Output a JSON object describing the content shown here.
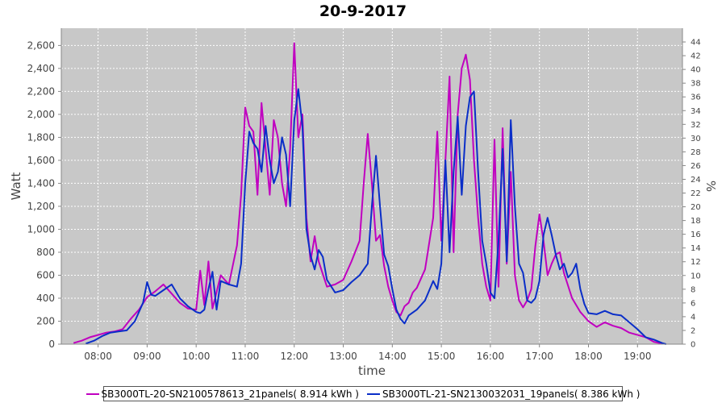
{
  "chart_data": {
    "type": "line",
    "title": "20-9-2017",
    "xlabel": "time",
    "ylabel": "Watt",
    "y2label": "%",
    "ylim": [
      0,
      2750
    ],
    "y2lim": [
      0,
      46
    ],
    "xlim": [
      "07:15",
      "19:55"
    ],
    "x_ticks": [
      "08:00",
      "09:00",
      "10:00",
      "11:00",
      "12:00",
      "13:00",
      "14:00",
      "15:00",
      "16:00",
      "17:00",
      "18:00",
      "19:00"
    ],
    "y_ticks": [
      "0",
      "200",
      "400",
      "600",
      "800",
      "1,000",
      "1,200",
      "1,400",
      "1,600",
      "1,800",
      "2,000",
      "2,200",
      "2,400",
      "2,600"
    ],
    "y2_ticks": [
      "0",
      "2",
      "4",
      "6",
      "8",
      "10",
      "12",
      "14",
      "16",
      "18",
      "20",
      "22",
      "24",
      "26",
      "28",
      "30",
      "32",
      "34",
      "36",
      "38",
      "40",
      "42",
      "44"
    ],
    "grid": true,
    "legend_position": "bottom",
    "series": [
      {
        "name": "SB3000TL-20-SN2100578613_21panels( 8.914 kWh )",
        "color": "#c000c0",
        "points": [
          [
            "07:30",
            10
          ],
          [
            "07:40",
            30
          ],
          [
            "07:50",
            60
          ],
          [
            "08:00",
            80
          ],
          [
            "08:10",
            100
          ],
          [
            "08:20",
            110
          ],
          [
            "08:30",
            130
          ],
          [
            "08:40",
            220
          ],
          [
            "08:50",
            300
          ],
          [
            "09:00",
            410
          ],
          [
            "09:10",
            460
          ],
          [
            "09:20",
            520
          ],
          [
            "09:30",
            440
          ],
          [
            "09:40",
            360
          ],
          [
            "09:50",
            310
          ],
          [
            "10:00",
            300
          ],
          [
            "10:05",
            640
          ],
          [
            "10:10",
            340
          ],
          [
            "10:15",
            720
          ],
          [
            "10:20",
            310
          ],
          [
            "10:30",
            600
          ],
          [
            "10:40",
            520
          ],
          [
            "10:50",
            860
          ],
          [
            "10:55",
            1300
          ],
          [
            "11:00",
            2060
          ],
          [
            "11:05",
            1900
          ],
          [
            "11:10",
            1850
          ],
          [
            "11:15",
            1300
          ],
          [
            "11:20",
            2100
          ],
          [
            "11:25",
            1700
          ],
          [
            "11:30",
            1300
          ],
          [
            "11:35",
            1950
          ],
          [
            "11:40",
            1800
          ],
          [
            "11:45",
            1400
          ],
          [
            "11:50",
            1200
          ],
          [
            "11:55",
            1700
          ],
          [
            "12:00",
            2620
          ],
          [
            "12:05",
            1800
          ],
          [
            "12:10",
            2000
          ],
          [
            "12:15",
            1100
          ],
          [
            "12:20",
            720
          ],
          [
            "12:25",
            940
          ],
          [
            "12:30",
            720
          ],
          [
            "12:40",
            500
          ],
          [
            "12:50",
            520
          ],
          [
            "13:00",
            560
          ],
          [
            "13:10",
            720
          ],
          [
            "13:20",
            900
          ],
          [
            "13:25",
            1400
          ],
          [
            "13:30",
            1830
          ],
          [
            "13:35",
            1400
          ],
          [
            "13:40",
            900
          ],
          [
            "13:45",
            950
          ],
          [
            "13:50",
            680
          ],
          [
            "13:55",
            500
          ],
          [
            "14:00",
            380
          ],
          [
            "14:05",
            280
          ],
          [
            "14:10",
            250
          ],
          [
            "14:15",
            330
          ],
          [
            "14:20",
            360
          ],
          [
            "14:25",
            450
          ],
          [
            "14:30",
            490
          ],
          [
            "14:40",
            650
          ],
          [
            "14:50",
            1100
          ],
          [
            "14:55",
            1850
          ],
          [
            "15:00",
            900
          ],
          [
            "15:05",
            1600
          ],
          [
            "15:10",
            2330
          ],
          [
            "15:15",
            800
          ],
          [
            "15:20",
            2000
          ],
          [
            "15:25",
            2400
          ],
          [
            "15:30",
            2520
          ],
          [
            "15:35",
            2300
          ],
          [
            "15:40",
            1600
          ],
          [
            "15:45",
            1100
          ],
          [
            "15:50",
            700
          ],
          [
            "15:55",
            500
          ],
          [
            "16:00",
            380
          ],
          [
            "16:05",
            1780
          ],
          [
            "16:10",
            500
          ],
          [
            "16:15",
            1880
          ],
          [
            "16:20",
            700
          ],
          [
            "16:25",
            1500
          ],
          [
            "16:30",
            600
          ],
          [
            "16:35",
            380
          ],
          [
            "16:40",
            320
          ],
          [
            "16:45",
            380
          ],
          [
            "16:50",
            480
          ],
          [
            "16:55",
            850
          ],
          [
            "17:00",
            1130
          ],
          [
            "17:05",
            900
          ],
          [
            "17:10",
            600
          ],
          [
            "17:15",
            700
          ],
          [
            "17:20",
            780
          ],
          [
            "17:25",
            800
          ],
          [
            "17:30",
            620
          ],
          [
            "17:40",
            400
          ],
          [
            "17:50",
            280
          ],
          [
            "18:00",
            200
          ],
          [
            "18:10",
            150
          ],
          [
            "18:20",
            190
          ],
          [
            "18:30",
            160
          ],
          [
            "18:40",
            140
          ],
          [
            "18:50",
            100
          ],
          [
            "19:00",
            80
          ],
          [
            "19:10",
            60
          ],
          [
            "19:20",
            20
          ],
          [
            "19:30",
            5
          ]
        ]
      },
      {
        "name": "SB3000TL-21-SN2130032031_19panels( 8.386 kWh )",
        "color": "#0a2ec8",
        "points": [
          [
            "07:45",
            5
          ],
          [
            "07:55",
            30
          ],
          [
            "08:05",
            70
          ],
          [
            "08:15",
            100
          ],
          [
            "08:25",
            110
          ],
          [
            "08:35",
            120
          ],
          [
            "08:45",
            200
          ],
          [
            "08:55",
            360
          ],
          [
            "09:00",
            540
          ],
          [
            "09:05",
            430
          ],
          [
            "09:10",
            420
          ],
          [
            "09:20",
            470
          ],
          [
            "09:30",
            520
          ],
          [
            "09:40",
            400
          ],
          [
            "09:50",
            330
          ],
          [
            "10:00",
            280
          ],
          [
            "10:05",
            270
          ],
          [
            "10:10",
            300
          ],
          [
            "10:15",
            480
          ],
          [
            "10:20",
            630
          ],
          [
            "10:25",
            300
          ],
          [
            "10:30",
            550
          ],
          [
            "10:40",
            520
          ],
          [
            "10:50",
            500
          ],
          [
            "10:55",
            700
          ],
          [
            "11:00",
            1400
          ],
          [
            "11:05",
            1850
          ],
          [
            "11:10",
            1750
          ],
          [
            "11:15",
            1700
          ],
          [
            "11:20",
            1500
          ],
          [
            "11:25",
            1900
          ],
          [
            "11:30",
            1600
          ],
          [
            "11:35",
            1400
          ],
          [
            "11:40",
            1500
          ],
          [
            "11:45",
            1800
          ],
          [
            "11:50",
            1650
          ],
          [
            "11:55",
            1200
          ],
          [
            "12:00",
            1950
          ],
          [
            "12:05",
            2220
          ],
          [
            "12:10",
            1900
          ],
          [
            "12:15",
            1000
          ],
          [
            "12:20",
            770
          ],
          [
            "12:25",
            650
          ],
          [
            "12:30",
            820
          ],
          [
            "12:35",
            760
          ],
          [
            "12:40",
            560
          ],
          [
            "12:50",
            450
          ],
          [
            "13:00",
            470
          ],
          [
            "13:10",
            540
          ],
          [
            "13:20",
            600
          ],
          [
            "13:30",
            700
          ],
          [
            "13:35",
            1200
          ],
          [
            "13:40",
            1640
          ],
          [
            "13:45",
            1200
          ],
          [
            "13:50",
            780
          ],
          [
            "13:55",
            680
          ],
          [
            "14:00",
            480
          ],
          [
            "14:05",
            300
          ],
          [
            "14:10",
            220
          ],
          [
            "14:15",
            180
          ],
          [
            "14:20",
            250
          ],
          [
            "14:30",
            300
          ],
          [
            "14:40",
            380
          ],
          [
            "14:50",
            550
          ],
          [
            "14:55",
            480
          ],
          [
            "15:00",
            700
          ],
          [
            "15:05",
            1600
          ],
          [
            "15:10",
            800
          ],
          [
            "15:15",
            1500
          ],
          [
            "15:20",
            1980
          ],
          [
            "15:25",
            1300
          ],
          [
            "15:30",
            1900
          ],
          [
            "15:35",
            2150
          ],
          [
            "15:40",
            2200
          ],
          [
            "15:45",
            1500
          ],
          [
            "15:50",
            900
          ],
          [
            "15:55",
            700
          ],
          [
            "16:00",
            450
          ],
          [
            "16:05",
            400
          ],
          [
            "16:10",
            900
          ],
          [
            "16:15",
            1700
          ],
          [
            "16:20",
            720
          ],
          [
            "16:25",
            1950
          ],
          [
            "16:30",
            1200
          ],
          [
            "16:35",
            700
          ],
          [
            "16:40",
            620
          ],
          [
            "16:45",
            380
          ],
          [
            "16:50",
            360
          ],
          [
            "16:55",
            400
          ],
          [
            "17:00",
            550
          ],
          [
            "17:05",
            950
          ],
          [
            "17:10",
            1100
          ],
          [
            "17:15",
            950
          ],
          [
            "17:20",
            780
          ],
          [
            "17:25",
            650
          ],
          [
            "17:30",
            700
          ],
          [
            "17:35",
            580
          ],
          [
            "17:40",
            620
          ],
          [
            "17:45",
            700
          ],
          [
            "17:50",
            480
          ],
          [
            "17:55",
            350
          ],
          [
            "18:00",
            270
          ],
          [
            "18:10",
            260
          ],
          [
            "18:20",
            290
          ],
          [
            "18:30",
            260
          ],
          [
            "18:40",
            250
          ],
          [
            "18:50",
            190
          ],
          [
            "19:00",
            130
          ],
          [
            "19:10",
            60
          ],
          [
            "19:20",
            40
          ],
          [
            "19:30",
            10
          ],
          [
            "19:35",
            0
          ]
        ]
      }
    ]
  }
}
